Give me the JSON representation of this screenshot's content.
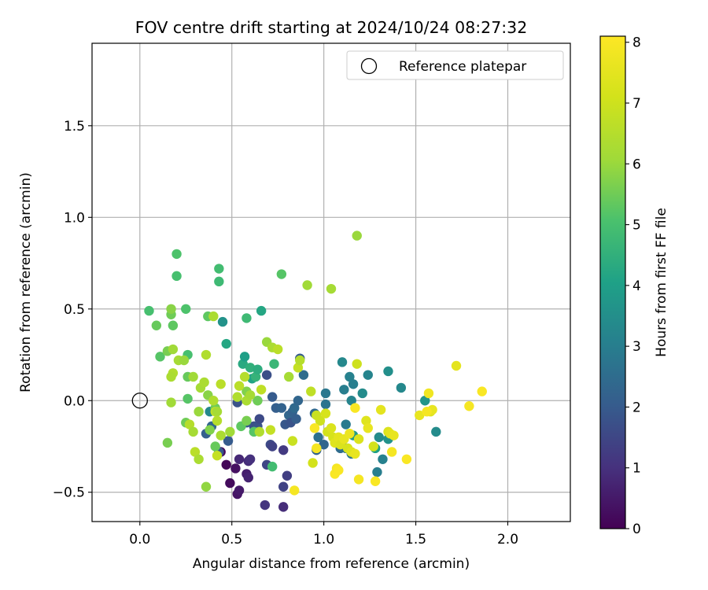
{
  "chart_data": {
    "type": "scatter",
    "title": "FOV centre drift starting at 2024/10/24 08:27:32",
    "xlabel": "Angular distance from reference (arcmin)",
    "ylabel": "Rotation from reference (arcmin)",
    "xlim": [
      -0.26,
      2.34
    ],
    "ylim": [
      -0.66,
      1.95
    ],
    "x_ticks": [
      {
        "value": 0.0,
        "label": "0.0"
      },
      {
        "value": 0.5,
        "label": "0.5"
      },
      {
        "value": 1.0,
        "label": "1.0"
      },
      {
        "value": 1.5,
        "label": "1.5"
      },
      {
        "value": 2.0,
        "label": "2.0"
      }
    ],
    "y_ticks": [
      {
        "value": -0.5,
        "label": "−0.5"
      },
      {
        "value": 0.0,
        "label": "0.0"
      },
      {
        "value": 0.5,
        "label": "0.5"
      },
      {
        "value": 1.0,
        "label": "1.0"
      },
      {
        "value": 1.5,
        "label": "1.5"
      }
    ],
    "grid": true,
    "legend": {
      "position": "top-right",
      "entries": [
        {
          "label": "Reference platepar",
          "marker": "open-circle"
        }
      ]
    },
    "reference_point": {
      "x": 0.0,
      "y": 0.0
    },
    "colorbar": {
      "label": "Hours from first FF file",
      "colormap": "viridis",
      "range": [
        0,
        8.1
      ],
      "ticks": [
        {
          "value": 0,
          "label": "0"
        },
        {
          "value": 1,
          "label": "1"
        },
        {
          "value": 2,
          "label": "2"
        },
        {
          "value": 3,
          "label": "3"
        },
        {
          "value": 4,
          "label": "4"
        },
        {
          "value": 5,
          "label": "5"
        },
        {
          "value": 6,
          "label": "6"
        },
        {
          "value": 7,
          "label": "7"
        },
        {
          "value": 8,
          "label": "8"
        }
      ]
    },
    "points": [
      {
        "x": 0.47,
        "y": -0.35,
        "c": 0.1
      },
      {
        "x": 0.49,
        "y": -0.45,
        "c": 0.2
      },
      {
        "x": 0.53,
        "y": -0.51,
        "c": 0.4
      },
      {
        "x": 0.54,
        "y": -0.49,
        "c": 0.5
      },
      {
        "x": 0.52,
        "y": -0.37,
        "c": 0.3
      },
      {
        "x": 0.44,
        "y": -0.28,
        "c": 0.2
      },
      {
        "x": 0.58,
        "y": -0.4,
        "c": 0.6
      },
      {
        "x": 0.59,
        "y": -0.42,
        "c": 0.7
      },
      {
        "x": 0.54,
        "y": -0.32,
        "c": 0.8
      },
      {
        "x": 0.59,
        "y": -0.33,
        "c": 0.9
      },
      {
        "x": 0.6,
        "y": -0.32,
        "c": 1.0
      },
      {
        "x": 0.68,
        "y": -0.57,
        "c": 1.1
      },
      {
        "x": 0.78,
        "y": -0.58,
        "c": 0.9
      },
      {
        "x": 0.78,
        "y": -0.27,
        "c": 1.2
      },
      {
        "x": 0.78,
        "y": -0.47,
        "c": 1.4
      },
      {
        "x": 0.8,
        "y": -0.41,
        "c": 1.3
      },
      {
        "x": 0.69,
        "y": -0.35,
        "c": 1.5
      },
      {
        "x": 0.71,
        "y": -0.24,
        "c": 1.6
      },
      {
        "x": 0.72,
        "y": -0.25,
        "c": 1.4
      },
      {
        "x": 0.62,
        "y": -0.14,
        "c": 1.7
      },
      {
        "x": 0.64,
        "y": -0.14,
        "c": 1.8
      },
      {
        "x": 0.58,
        "y": -0.12,
        "c": 1.9
      },
      {
        "x": 0.65,
        "y": -0.1,
        "c": 1.6
      },
      {
        "x": 0.53,
        "y": -0.01,
        "c": 1.8
      },
      {
        "x": 0.69,
        "y": 0.14,
        "c": 1.7
      },
      {
        "x": 0.72,
        "y": 0.02,
        "c": 2.0
      },
      {
        "x": 0.74,
        "y": -0.04,
        "c": 2.1
      },
      {
        "x": 0.77,
        "y": -0.04,
        "c": 2.2
      },
      {
        "x": 0.79,
        "y": -0.13,
        "c": 1.9
      },
      {
        "x": 0.81,
        "y": -0.08,
        "c": 2.3
      },
      {
        "x": 0.82,
        "y": -0.12,
        "c": 1.8
      },
      {
        "x": 0.83,
        "y": -0.06,
        "c": 2.2
      },
      {
        "x": 0.84,
        "y": -0.04,
        "c": 2.4
      },
      {
        "x": 0.85,
        "y": -0.1,
        "c": 2.1
      },
      {
        "x": 0.86,
        "y": 0.0,
        "c": 2.3
      },
      {
        "x": 0.87,
        "y": 0.23,
        "c": 2.0
      },
      {
        "x": 0.89,
        "y": 0.14,
        "c": 2.5
      },
      {
        "x": 0.95,
        "y": -0.07,
        "c": 2.4
      },
      {
        "x": 0.96,
        "y": -0.27,
        "c": 2.2
      },
      {
        "x": 0.97,
        "y": -0.2,
        "c": 2.6
      },
      {
        "x": 1.0,
        "y": -0.24,
        "c": 2.3
      },
      {
        "x": 1.01,
        "y": -0.02,
        "c": 2.7
      },
      {
        "x": 1.01,
        "y": 0.04,
        "c": 2.8
      },
      {
        "x": 1.09,
        "y": -0.26,
        "c": 2.5
      },
      {
        "x": 1.12,
        "y": -0.13,
        "c": 2.9
      },
      {
        "x": 1.12,
        "y": -0.26,
        "c": 2.6
      },
      {
        "x": 1.15,
        "y": -0.29,
        "c": 2.7
      },
      {
        "x": 1.11,
        "y": 0.06,
        "c": 3.0
      },
      {
        "x": 1.14,
        "y": 0.13,
        "c": 3.1
      },
      {
        "x": 1.15,
        "y": 0.0,
        "c": 3.2
      },
      {
        "x": 1.16,
        "y": 0.09,
        "c": 3.0
      },
      {
        "x": 1.1,
        "y": 0.21,
        "c": 3.3
      },
      {
        "x": 1.21,
        "y": 0.04,
        "c": 3.4
      },
      {
        "x": 1.24,
        "y": 0.14,
        "c": 3.2
      },
      {
        "x": 1.29,
        "y": -0.39,
        "c": 3.0
      },
      {
        "x": 1.32,
        "y": -0.32,
        "c": 3.1
      },
      {
        "x": 1.3,
        "y": -0.2,
        "c": 3.4
      },
      {
        "x": 1.35,
        "y": -0.21,
        "c": 3.6
      },
      {
        "x": 1.42,
        "y": 0.07,
        "c": 3.3
      },
      {
        "x": 1.35,
        "y": 0.16,
        "c": 3.5
      },
      {
        "x": 1.55,
        "y": 0.0,
        "c": 3.7
      },
      {
        "x": 1.61,
        "y": -0.17,
        "c": 3.4
      },
      {
        "x": 1.16,
        "y": -0.19,
        "c": 3.8
      },
      {
        "x": 1.28,
        "y": -0.26,
        "c": 4.0
      },
      {
        "x": 0.48,
        "y": -0.22,
        "c": 2.0
      },
      {
        "x": 0.36,
        "y": -0.18,
        "c": 2.1
      },
      {
        "x": 0.39,
        "y": -0.14,
        "c": 2.3
      },
      {
        "x": 0.43,
        "y": -0.28,
        "c": 1.9
      },
      {
        "x": 0.38,
        "y": -0.06,
        "c": 3.3
      },
      {
        "x": 0.45,
        "y": 0.43,
        "c": 3.6
      },
      {
        "x": 0.47,
        "y": 0.31,
        "c": 4.2
      },
      {
        "x": 0.56,
        "y": 0.2,
        "c": 4.3
      },
      {
        "x": 0.57,
        "y": 0.24,
        "c": 4.0
      },
      {
        "x": 0.6,
        "y": 0.18,
        "c": 4.5
      },
      {
        "x": 0.61,
        "y": 0.12,
        "c": 4.1
      },
      {
        "x": 0.63,
        "y": 0.13,
        "c": 4.6
      },
      {
        "x": 0.64,
        "y": 0.17,
        "c": 4.4
      },
      {
        "x": 0.66,
        "y": 0.49,
        "c": 4.2
      },
      {
        "x": 0.73,
        "y": 0.2,
        "c": 4.7
      },
      {
        "x": 0.58,
        "y": 0.45,
        "c": 4.8
      },
      {
        "x": 0.43,
        "y": 0.72,
        "c": 4.9
      },
      {
        "x": 0.43,
        "y": 0.65,
        "c": 4.8
      },
      {
        "x": 0.2,
        "y": 0.8,
        "c": 5.1
      },
      {
        "x": 0.2,
        "y": 0.68,
        "c": 5.0
      },
      {
        "x": 0.77,
        "y": 0.69,
        "c": 5.2
      },
      {
        "x": 0.25,
        "y": 0.5,
        "c": 5.1
      },
      {
        "x": 0.05,
        "y": 0.49,
        "c": 5.0
      },
      {
        "x": 0.09,
        "y": 0.41,
        "c": 5.4
      },
      {
        "x": 0.18,
        "y": 0.41,
        "c": 5.3
      },
      {
        "x": 0.17,
        "y": 0.47,
        "c": 5.5
      },
      {
        "x": 0.17,
        "y": 0.5,
        "c": 5.8
      },
      {
        "x": 0.11,
        "y": 0.24,
        "c": 5.2
      },
      {
        "x": 0.15,
        "y": 0.27,
        "c": 5.6
      },
      {
        "x": 0.26,
        "y": 0.25,
        "c": 5.0
      },
      {
        "x": 0.26,
        "y": 0.13,
        "c": 5.4
      },
      {
        "x": 0.26,
        "y": 0.01,
        "c": 5.2
      },
      {
        "x": 0.37,
        "y": 0.46,
        "c": 5.3
      },
      {
        "x": 0.25,
        "y": -0.12,
        "c": 5.5
      },
      {
        "x": 0.15,
        "y": -0.23,
        "c": 5.6
      },
      {
        "x": 0.36,
        "y": -0.47,
        "c": 5.9
      },
      {
        "x": 0.38,
        "y": -0.16,
        "c": 5.7
      },
      {
        "x": 0.41,
        "y": -0.04,
        "c": 5.5
      },
      {
        "x": 0.37,
        "y": 0.03,
        "c": 5.8
      },
      {
        "x": 0.41,
        "y": -0.25,
        "c": 5.4
      },
      {
        "x": 0.55,
        "y": -0.14,
        "c": 5.3
      },
      {
        "x": 0.58,
        "y": -0.11,
        "c": 5.6
      },
      {
        "x": 0.62,
        "y": -0.17,
        "c": 5.2
      },
      {
        "x": 0.72,
        "y": -0.36,
        "c": 4.9
      },
      {
        "x": 0.58,
        "y": 0.05,
        "c": 5.7
      },
      {
        "x": 0.64,
        "y": 0.0,
        "c": 5.5
      },
      {
        "x": 0.81,
        "y": 0.13,
        "c": 6.2
      },
      {
        "x": 1.18,
        "y": 0.9,
        "c": 6.0
      },
      {
        "x": 0.91,
        "y": 0.63,
        "c": 6.1
      },
      {
        "x": 1.04,
        "y": 0.61,
        "c": 6.2
      },
      {
        "x": 0.69,
        "y": 0.32,
        "c": 6.0
      },
      {
        "x": 0.4,
        "y": 0.46,
        "c": 6.3
      },
      {
        "x": 0.18,
        "y": 0.28,
        "c": 6.1
      },
      {
        "x": 0.21,
        "y": 0.22,
        "c": 6.2
      },
      {
        "x": 0.24,
        "y": 0.22,
        "c": 6.0
      },
      {
        "x": 0.18,
        "y": 0.15,
        "c": 6.4
      },
      {
        "x": 0.17,
        "y": 0.13,
        "c": 6.3
      },
      {
        "x": 0.29,
        "y": 0.13,
        "c": 6.1
      },
      {
        "x": 0.33,
        "y": 0.07,
        "c": 6.2
      },
      {
        "x": 0.35,
        "y": 0.1,
        "c": 6.3
      },
      {
        "x": 0.36,
        "y": 0.25,
        "c": 6.4
      },
      {
        "x": 0.17,
        "y": -0.01,
        "c": 6.1
      },
      {
        "x": 0.27,
        "y": -0.13,
        "c": 6.5
      },
      {
        "x": 0.29,
        "y": -0.17,
        "c": 6.2
      },
      {
        "x": 0.3,
        "y": -0.28,
        "c": 6.6
      },
      {
        "x": 0.32,
        "y": -0.32,
        "c": 6.3
      },
      {
        "x": 0.32,
        "y": -0.06,
        "c": 6.0
      },
      {
        "x": 0.4,
        "y": 0.0,
        "c": 6.4
      },
      {
        "x": 0.41,
        "y": -0.06,
        "c": 6.7
      },
      {
        "x": 0.42,
        "y": -0.06,
        "c": 6.2
      },
      {
        "x": 0.42,
        "y": -0.11,
        "c": 6.5
      },
      {
        "x": 0.42,
        "y": -0.3,
        "c": 6.8
      },
      {
        "x": 0.44,
        "y": 0.09,
        "c": 6.6
      },
      {
        "x": 0.44,
        "y": -0.19,
        "c": 6.3
      },
      {
        "x": 0.49,
        "y": -0.17,
        "c": 6.1
      },
      {
        "x": 0.53,
        "y": 0.02,
        "c": 6.4
      },
      {
        "x": 0.54,
        "y": 0.08,
        "c": 6.6
      },
      {
        "x": 0.57,
        "y": 0.13,
        "c": 6.5
      },
      {
        "x": 0.58,
        "y": 0.0,
        "c": 6.3
      },
      {
        "x": 0.6,
        "y": 0.03,
        "c": 6.2
      },
      {
        "x": 0.65,
        "y": -0.17,
        "c": 6.4
      },
      {
        "x": 0.66,
        "y": 0.06,
        "c": 6.7
      },
      {
        "x": 0.71,
        "y": -0.16,
        "c": 6.8
      },
      {
        "x": 0.72,
        "y": 0.29,
        "c": 6.3
      },
      {
        "x": 0.75,
        "y": 0.28,
        "c": 6.6
      },
      {
        "x": 0.83,
        "y": -0.22,
        "c": 6.9
      },
      {
        "x": 0.86,
        "y": 0.18,
        "c": 6.8
      },
      {
        "x": 0.87,
        "y": 0.22,
        "c": 6.5
      },
      {
        "x": 0.93,
        "y": 0.05,
        "c": 6.7
      },
      {
        "x": 0.96,
        "y": -0.08,
        "c": 6.9
      },
      {
        "x": 0.98,
        "y": -0.11,
        "c": 7.0
      },
      {
        "x": 0.94,
        "y": -0.34,
        "c": 7.1
      },
      {
        "x": 1.01,
        "y": -0.07,
        "c": 7.2
      },
      {
        "x": 1.02,
        "y": -0.17,
        "c": 7.1
      },
      {
        "x": 1.04,
        "y": -0.15,
        "c": 7.3
      },
      {
        "x": 1.05,
        "y": -0.2,
        "c": 7.2
      },
      {
        "x": 1.06,
        "y": -0.23,
        "c": 7.4
      },
      {
        "x": 1.08,
        "y": -0.2,
        "c": 7.5
      },
      {
        "x": 1.09,
        "y": -0.24,
        "c": 7.3
      },
      {
        "x": 1.11,
        "y": -0.21,
        "c": 7.6
      },
      {
        "x": 1.13,
        "y": -0.26,
        "c": 7.2
      },
      {
        "x": 1.14,
        "y": -0.18,
        "c": 7.7
      },
      {
        "x": 1.15,
        "y": -0.28,
        "c": 7.4
      },
      {
        "x": 1.17,
        "y": -0.29,
        "c": 7.6
      },
      {
        "x": 1.19,
        "y": -0.21,
        "c": 7.3
      },
      {
        "x": 1.18,
        "y": 0.2,
        "c": 7.0
      },
      {
        "x": 1.23,
        "y": -0.11,
        "c": 7.4
      },
      {
        "x": 1.24,
        "y": -0.15,
        "c": 7.6
      },
      {
        "x": 1.27,
        "y": -0.25,
        "c": 7.1
      },
      {
        "x": 1.31,
        "y": -0.05,
        "c": 7.5
      },
      {
        "x": 1.35,
        "y": -0.17,
        "c": 7.3
      },
      {
        "x": 1.36,
        "y": -0.18,
        "c": 7.5
      },
      {
        "x": 1.38,
        "y": -0.19,
        "c": 7.6
      },
      {
        "x": 1.52,
        "y": -0.08,
        "c": 7.6
      },
      {
        "x": 1.58,
        "y": -0.06,
        "c": 7.4
      },
      {
        "x": 1.59,
        "y": -0.05,
        "c": 7.6
      },
      {
        "x": 1.72,
        "y": 0.19,
        "c": 7.5
      },
      {
        "x": 1.57,
        "y": 0.04,
        "c": 7.8
      },
      {
        "x": 0.95,
        "y": -0.15,
        "c": 8.0
      },
      {
        "x": 0.96,
        "y": -0.26,
        "c": 7.9
      },
      {
        "x": 1.06,
        "y": -0.4,
        "c": 8.0
      },
      {
        "x": 1.07,
        "y": -0.37,
        "c": 7.9
      },
      {
        "x": 1.08,
        "y": -0.38,
        "c": 8.0
      },
      {
        "x": 1.17,
        "y": -0.04,
        "c": 8.0
      },
      {
        "x": 1.19,
        "y": -0.43,
        "c": 7.9
      },
      {
        "x": 1.28,
        "y": -0.44,
        "c": 8.0
      },
      {
        "x": 1.37,
        "y": -0.28,
        "c": 7.9
      },
      {
        "x": 1.45,
        "y": -0.32,
        "c": 8.0
      },
      {
        "x": 1.56,
        "y": -0.06,
        "c": 7.9
      },
      {
        "x": 1.79,
        "y": -0.03,
        "c": 7.9
      },
      {
        "x": 1.86,
        "y": 0.05,
        "c": 8.0
      },
      {
        "x": 0.84,
        "y": -0.49,
        "c": 7.9
      }
    ]
  }
}
